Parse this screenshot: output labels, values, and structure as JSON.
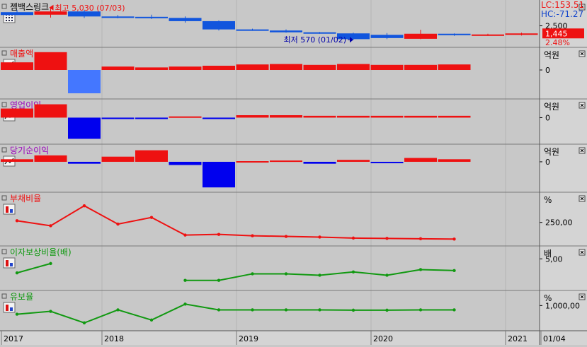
{
  "colors": {
    "bg": "#c8c8c8",
    "axis_bg": "#d4d4d4",
    "up": "#ee1111",
    "down": "#1155dd",
    "down_strong": "#0000ee",
    "down_light": "#4477ff",
    "debt": "#ee1111",
    "interest": "#119911",
    "reserve": "#119911",
    "grid": "#b4b4b4",
    "sep": "#7a7a7a"
  },
  "x_labels": [
    {
      "label": "2017",
      "i": 0
    },
    {
      "label": "2018",
      "i": 3
    },
    {
      "label": "2019",
      "i": 7
    },
    {
      "label": "2020",
      "i": 11
    },
    {
      "label": "2021",
      "i": 15
    },
    {
      "label": "01/04",
      "i": 16
    }
  ],
  "panels": [
    {
      "key": "price",
      "title": "젬백스링크",
      "title_color": "#000000",
      "icon": "calculator-icon",
      "unit": "",
      "ticks": [
        {
          "label": "2,500",
          "v": 2500
        }
      ],
      "right_top": "LC:153.51",
      "right_sub": "HC:-71.27",
      "current": "1,445",
      "partial": "2.48%",
      "annotations": [
        {
          "text": "최고 5,030 (07/03)",
          "color": "#ee1111",
          "i": 1,
          "v": 5030,
          "dir": "left"
        },
        {
          "text": "최저 570 (01/02)",
          "color": "#0000aa",
          "i": 10,
          "v": 570,
          "dir": "right"
        }
      ]
    },
    {
      "key": "sales",
      "title": "매출액",
      "title_color": "#ee1111",
      "icon": "line-chart-icon",
      "unit": "억원",
      "ticks": [
        {
          "label": "0",
          "v": 0
        }
      ]
    },
    {
      "key": "op",
      "title": "영업이익",
      "title_color": "#9900bb",
      "icon": "line-chart-icon",
      "unit": "억원",
      "ticks": [
        {
          "label": "0",
          "v": 0
        }
      ]
    },
    {
      "key": "net",
      "title": "당기순이익",
      "title_color": "#9900bb",
      "icon": "line-chart-icon",
      "unit": "억원",
      "ticks": [
        {
          "label": "0",
          "v": 0
        }
      ]
    },
    {
      "key": "debt",
      "title": "부채비율",
      "title_color": "#ee1111",
      "icon": "bar-chart-icon",
      "unit": "%",
      "ticks": [
        {
          "label": "250,00",
          "v": 250
        }
      ]
    },
    {
      "key": "interest",
      "title": "이자보상비율(배)",
      "title_color": "#119911",
      "icon": "bar-chart-icon",
      "unit": "배",
      "ticks": [
        {
          "label": "5,00",
          "v": 5
        }
      ]
    },
    {
      "key": "reserve",
      "title": "유보율",
      "title_color": "#119911",
      "icon": "bar-chart-icon",
      "unit": "%",
      "ticks": [
        {
          "label": "1,000,00",
          "v": 1000
        }
      ]
    }
  ],
  "chart_data": [
    {
      "type": "candlestick",
      "name": "젬백스링크",
      "candles": [
        {
          "o": 4400,
          "h": 4700,
          "l": 4000,
          "c": 4000
        },
        {
          "o": 4050,
          "h": 5030,
          "l": 3650,
          "c": 4500
        },
        {
          "o": 4500,
          "h": 4700,
          "l": 3600,
          "c": 3800
        },
        {
          "o": 3800,
          "h": 4000,
          "l": 3550,
          "c": 3600
        },
        {
          "o": 3750,
          "h": 4050,
          "l": 3450,
          "c": 3600
        },
        {
          "o": 3600,
          "h": 3800,
          "l": 2950,
          "c": 3150
        },
        {
          "o": 3150,
          "h": 3250,
          "l": 1850,
          "c": 2000
        },
        {
          "o": 2000,
          "h": 2100,
          "l": 1800,
          "c": 1850
        },
        {
          "o": 1850,
          "h": 2000,
          "l": 1550,
          "c": 1600
        },
        {
          "o": 1600,
          "h": 1650,
          "l": 1400,
          "c": 1450
        },
        {
          "o": 1450,
          "h": 1550,
          "l": 570,
          "c": 650
        },
        {
          "o": 1250,
          "h": 1500,
          "l": 650,
          "c": 800
        },
        {
          "o": 700,
          "h": 1950,
          "l": 650,
          "c": 1400
        },
        {
          "o": 1400,
          "h": 1450,
          "l": 1100,
          "c": 1200
        },
        {
          "o": 1250,
          "h": 1400,
          "l": 1100,
          "c": 1300
        },
        {
          "o": 1300,
          "h": 1550,
          "l": 1150,
          "c": 1445
        }
      ],
      "ylim": [
        0,
        5500
      ]
    },
    {
      "type": "bar",
      "name": "매출액",
      "values": [
        18,
        42,
        -55,
        8,
        6,
        8,
        10,
        13,
        14,
        12,
        14,
        12,
        12,
        13
      ],
      "ylim": [
        -60,
        45
      ]
    },
    {
      "type": "bar",
      "name": "영업이익",
      "values": [
        15,
        22,
        -35,
        -1,
        -1,
        2,
        -1,
        4,
        4,
        3,
        3,
        3,
        3,
        3
      ],
      "ylim": [
        -38,
        25
      ]
    },
    {
      "type": "bar",
      "name": "당기순이익",
      "values": [
        4,
        10,
        -3,
        8,
        18,
        -5,
        -40,
        1,
        2,
        -3,
        3,
        -1,
        6,
        4
      ],
      "ylim": [
        -42,
        22
      ]
    },
    {
      "type": "line",
      "name": "부채비율",
      "values": [
        255,
        240,
        300,
        245,
        265,
        212,
        214,
        210,
        208,
        206,
        203,
        202,
        201,
        200
      ],
      "ylim": [
        190,
        330
      ]
    },
    {
      "type": "line",
      "name": "이자보상비율(배)",
      "values": [
        2,
        4,
        null,
        null,
        null,
        0.4,
        0.4,
        1.8,
        1.8,
        1.5,
        2.2,
        1.5,
        2.7,
        2.5
      ],
      "ylim": [
        -1,
        7
      ]
    },
    {
      "type": "line",
      "name": "유보율",
      "values": [
        940,
        960,
        880,
        970,
        900,
        1010,
        970,
        970,
        970,
        970,
        968,
        968,
        970,
        970
      ],
      "ylim": [
        850,
        1080
      ]
    }
  ]
}
